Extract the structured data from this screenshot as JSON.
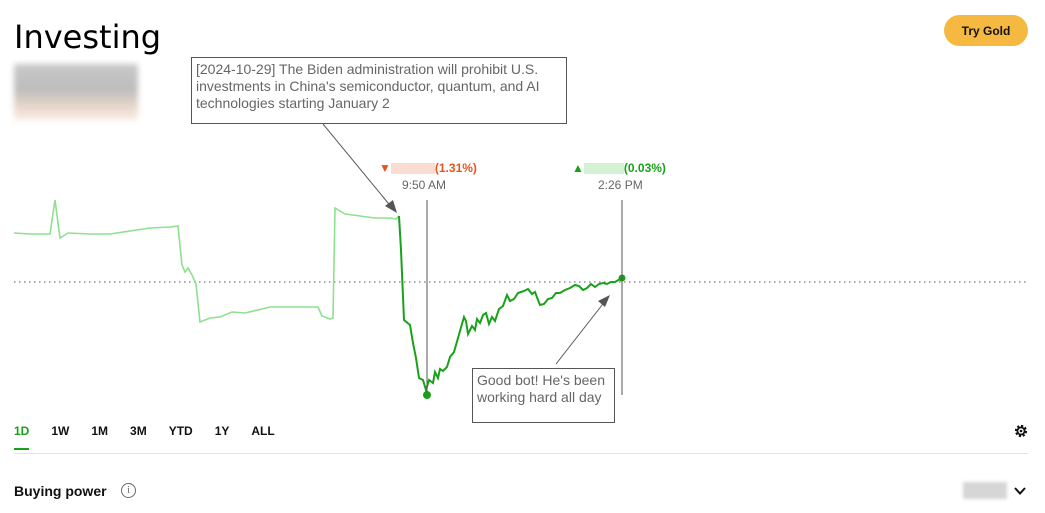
{
  "header": {
    "title": "Investing",
    "try_gold_label": "Try Gold"
  },
  "annotations": {
    "top": "[2024-10-29] The Biden administration will prohibit U.S. investments in China's semiconductor, quantum, and AI technologies starting January 2",
    "bottom": "Good bot! He's been working hard all day"
  },
  "markers": {
    "left": {
      "change": "(1.31%)",
      "time": "9:50 AM",
      "color": "#e8551b",
      "direction": "down"
    },
    "right": {
      "change": "(0.03%)",
      "time": "2:26 PM",
      "color": "#19a119",
      "direction": "up"
    }
  },
  "range_tabs": [
    "1D",
    "1W",
    "1M",
    "3M",
    "YTD",
    "1Y",
    "ALL"
  ],
  "active_tab": "1D",
  "buying_power": {
    "label": "Buying power",
    "info_icon": "info-icon"
  },
  "colors": {
    "accent": "#19a119",
    "light_line": "#8fe08f",
    "gold": "#f5b942",
    "down": "#e8551b"
  }
}
